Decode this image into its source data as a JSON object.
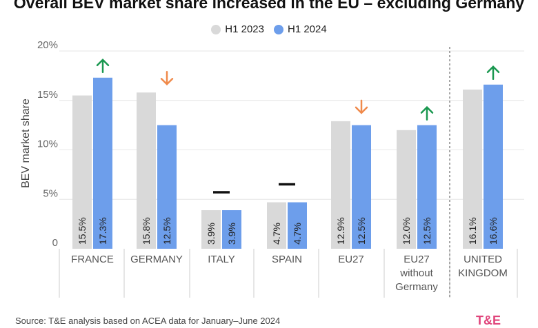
{
  "title": "Overall BEV market share increased in the EU – excluding Germany",
  "source": "Source: T&E analysis based on ACEA data for January–June 2024",
  "logo_text": "T&E",
  "colors": {
    "h1_2023": "#d9d9d9",
    "h1_2024": "#6d9eeb",
    "up_arrow": "#1a9850",
    "down_arrow": "#f08a4b",
    "flat_marker": "#111111",
    "grid": "#e6e6e6"
  },
  "chart_data": {
    "type": "bar",
    "title": "Overall BEV market share increased in the EU – excluding Germany",
    "ylabel": "BEV market share",
    "xlabel": "",
    "ylim": [
      0,
      20
    ],
    "yticks": [
      "0",
      "5%",
      "10%",
      "15%",
      "20%"
    ],
    "ytick_values": [
      0,
      5,
      10,
      15,
      20
    ],
    "grid": true,
    "legend_position": "top-center",
    "categories": [
      {
        "label": [
          "FRANCE"
        ],
        "trend": "up"
      },
      {
        "label": [
          "GERMANY"
        ],
        "trend": "down"
      },
      {
        "label": [
          "ITALY"
        ],
        "trend": "flat"
      },
      {
        "label": [
          "SPAIN"
        ],
        "trend": "flat"
      },
      {
        "label": [
          "EU27"
        ],
        "trend": "down"
      },
      {
        "label": [
          "EU27",
          "without",
          "Germany"
        ],
        "trend": "up"
      },
      {
        "label": [
          "UNITED",
          "KINGDOM"
        ],
        "trend": "up"
      }
    ],
    "series": [
      {
        "name": "H1 2023",
        "values": [
          15.5,
          15.8,
          3.9,
          4.7,
          12.9,
          12.0,
          16.1
        ],
        "labels": [
          "15.5%",
          "15.8%",
          "3.9%",
          "4.7%",
          "12.9%",
          "12.0%",
          "16.1%"
        ]
      },
      {
        "name": "H1 2024",
        "values": [
          17.3,
          12.5,
          3.9,
          4.7,
          12.5,
          12.5,
          16.6
        ],
        "labels": [
          "17.3%",
          "12.5%",
          "3.9%",
          "4.7%",
          "12.5%",
          "12.5%",
          "16.6%"
        ]
      }
    ],
    "separator_before_category": 6
  }
}
